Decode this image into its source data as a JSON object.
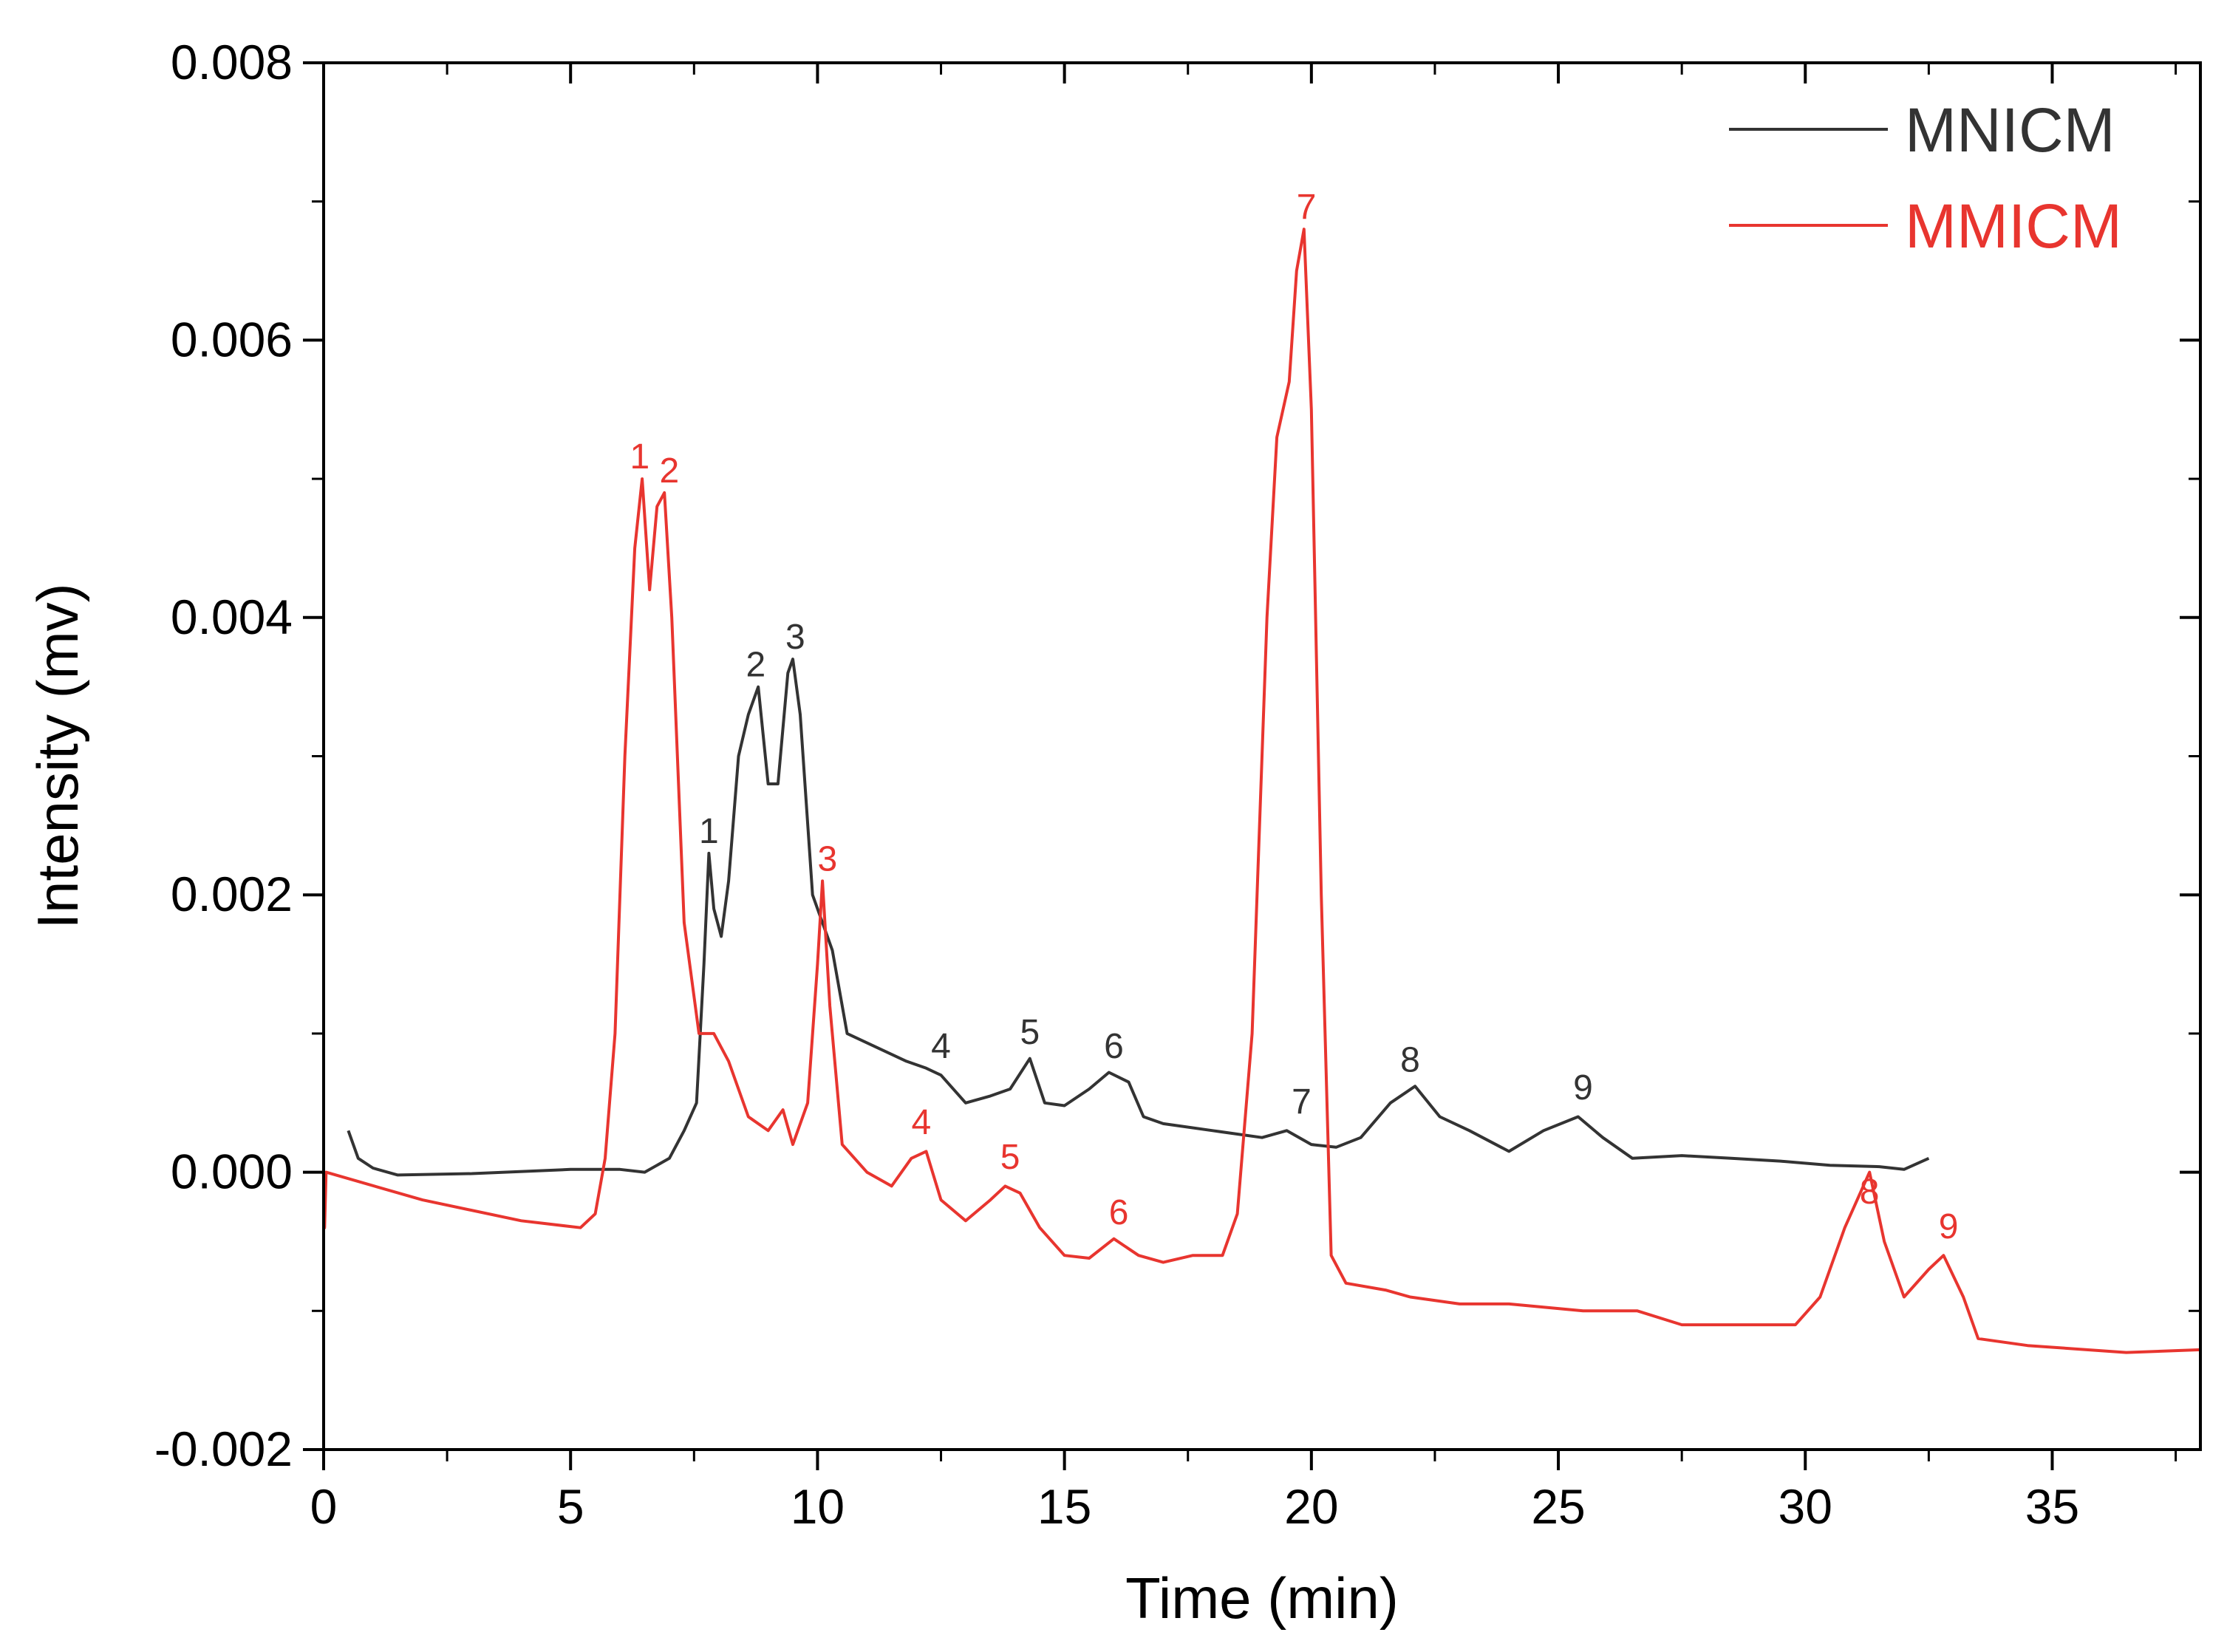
{
  "chart_data": {
    "type": "line",
    "xlabel": "Time (min)",
    "ylabel": "Intensity (mv)",
    "xlim": [
      0,
      38
    ],
    "ylim": [
      -0.002,
      0.008
    ],
    "x_ticks": [
      0,
      5,
      10,
      15,
      20,
      25,
      30,
      35
    ],
    "x_tick_labels": [
      "0",
      "5",
      "10",
      "15",
      "20",
      "25",
      "30",
      "35"
    ],
    "y_ticks": [
      -0.002,
      0.0,
      0.002,
      0.004,
      0.006,
      0.008
    ],
    "y_tick_labels": [
      "-0.002",
      "0.000",
      "0.002",
      "0.004",
      "0.006",
      "0.008"
    ],
    "legend_position": "top-right",
    "colors": {
      "MNICM": "#333333",
      "MMICM": "#e8352f",
      "axis": "#000000"
    },
    "series": [
      {
        "name": "MNICM",
        "points": [
          [
            0.5,
            0.0003
          ],
          [
            0.7,
            0.0001
          ],
          [
            1.0,
            3e-05
          ],
          [
            1.5,
            -2e-05
          ],
          [
            3.0,
            -1e-05
          ],
          [
            5.0,
            2e-05
          ],
          [
            6.0,
            2e-05
          ],
          [
            6.5,
            0.0
          ],
          [
            7.0,
            0.0001
          ],
          [
            7.3,
            0.0003
          ],
          [
            7.55,
            0.0005
          ],
          [
            7.7,
            0.0015
          ],
          [
            7.8,
            0.0023
          ],
          [
            7.9,
            0.0019
          ],
          [
            8.05,
            0.0017
          ],
          [
            8.2,
            0.0021
          ],
          [
            8.4,
            0.003
          ],
          [
            8.6,
            0.0033
          ],
          [
            8.8,
            0.0035
          ],
          [
            9.0,
            0.0028
          ],
          [
            9.2,
            0.0028
          ],
          [
            9.4,
            0.0036
          ],
          [
            9.5,
            0.0037
          ],
          [
            9.65,
            0.0033
          ],
          [
            9.9,
            0.002
          ],
          [
            10.3,
            0.0016
          ],
          [
            10.6,
            0.001
          ],
          [
            11.2,
            0.0009
          ],
          [
            11.8,
            0.0008
          ],
          [
            12.2,
            0.00075
          ],
          [
            12.5,
            0.0007
          ],
          [
            13.0,
            0.0005
          ],
          [
            13.5,
            0.00055
          ],
          [
            13.9,
            0.0006
          ],
          [
            14.3,
            0.00082
          ],
          [
            14.6,
            0.0005
          ],
          [
            15.0,
            0.00048
          ],
          [
            15.5,
            0.0006
          ],
          [
            15.9,
            0.00072
          ],
          [
            16.3,
            0.00065
          ],
          [
            16.6,
            0.0004
          ],
          [
            17.0,
            0.00035
          ],
          [
            18.0,
            0.0003
          ],
          [
            19.0,
            0.00025
          ],
          [
            19.5,
            0.0003
          ],
          [
            20.0,
            0.0002
          ],
          [
            20.5,
            0.00018
          ],
          [
            21.0,
            0.00025
          ],
          [
            21.6,
            0.0005
          ],
          [
            22.1,
            0.00062
          ],
          [
            22.6,
            0.0004
          ],
          [
            23.2,
            0.0003
          ],
          [
            24.0,
            0.00015
          ],
          [
            24.7,
            0.0003
          ],
          [
            25.4,
            0.0004
          ],
          [
            25.9,
            0.00025
          ],
          [
            26.5,
            0.0001
          ],
          [
            27.5,
            0.00012
          ],
          [
            28.5,
            0.0001
          ],
          [
            29.5,
            8e-05
          ],
          [
            30.5,
            5e-05
          ],
          [
            31.5,
            4e-05
          ],
          [
            32.0,
            2e-05
          ],
          [
            32.5,
            0.0001
          ]
        ]
      },
      {
        "name": "MMICM",
        "points": [
          [
            0.0,
            0.0
          ],
          [
            0.02,
            -0.0004
          ],
          [
            0.05,
            0.0
          ],
          [
            2.0,
            -0.0002
          ],
          [
            4.0,
            -0.00035
          ],
          [
            5.2,
            -0.0004
          ],
          [
            5.5,
            -0.0003
          ],
          [
            5.7,
            0.0001
          ],
          [
            5.9,
            0.001
          ],
          [
            6.1,
            0.003
          ],
          [
            6.3,
            0.0045
          ],
          [
            6.45,
            0.005
          ],
          [
            6.6,
            0.0042
          ],
          [
            6.75,
            0.0048
          ],
          [
            6.9,
            0.0049
          ],
          [
            7.05,
            0.004
          ],
          [
            7.3,
            0.0018
          ],
          [
            7.6,
            0.001
          ],
          [
            7.9,
            0.001
          ],
          [
            8.2,
            0.0008
          ],
          [
            8.6,
            0.0004
          ],
          [
            9.0,
            0.0003
          ],
          [
            9.3,
            0.00045
          ],
          [
            9.5,
            0.0002
          ],
          [
            9.8,
            0.0005
          ],
          [
            10.0,
            0.0015
          ],
          [
            10.1,
            0.0021
          ],
          [
            10.25,
            0.0012
          ],
          [
            10.5,
            0.0002
          ],
          [
            11.0,
            0.0
          ],
          [
            11.5,
            -0.0001
          ],
          [
            11.9,
            0.0001
          ],
          [
            12.2,
            0.00015
          ],
          [
            12.5,
            -0.0002
          ],
          [
            13.0,
            -0.00035
          ],
          [
            13.5,
            -0.0002
          ],
          [
            13.8,
            -0.0001
          ],
          [
            14.1,
            -0.00015
          ],
          [
            14.5,
            -0.0004
          ],
          [
            15.0,
            -0.0006
          ],
          [
            15.5,
            -0.00062
          ],
          [
            16.0,
            -0.00048
          ],
          [
            16.5,
            -0.0006
          ],
          [
            17.0,
            -0.00065
          ],
          [
            17.6,
            -0.0006
          ],
          [
            18.2,
            -0.0006
          ],
          [
            18.5,
            -0.0003
          ],
          [
            18.8,
            0.001
          ],
          [
            19.1,
            0.004
          ],
          [
            19.3,
            0.0053
          ],
          [
            19.55,
            0.0057
          ],
          [
            19.7,
            0.0065
          ],
          [
            19.85,
            0.0068
          ],
          [
            20.0,
            0.0055
          ],
          [
            20.2,
            0.002
          ],
          [
            20.4,
            -0.0006
          ],
          [
            20.7,
            -0.0008
          ],
          [
            21.5,
            -0.00085
          ],
          [
            22.0,
            -0.0009
          ],
          [
            23.0,
            -0.00095
          ],
          [
            24.0,
            -0.00095
          ],
          [
            25.5,
            -0.001
          ],
          [
            26.6,
            -0.001
          ],
          [
            27.5,
            -0.0011
          ],
          [
            29.0,
            -0.0011
          ],
          [
            29.8,
            -0.0011
          ],
          [
            30.3,
            -0.0009
          ],
          [
            30.8,
            -0.0004
          ],
          [
            31.3,
            0.0
          ],
          [
            31.6,
            -0.0005
          ],
          [
            32.0,
            -0.0009
          ],
          [
            32.5,
            -0.0007
          ],
          [
            32.8,
            -0.0006
          ],
          [
            33.2,
            -0.0009
          ],
          [
            33.5,
            -0.0012
          ],
          [
            34.5,
            -0.00125
          ],
          [
            36.5,
            -0.0013
          ],
          [
            38.0,
            -0.00128
          ]
        ]
      }
    ],
    "peak_labels": [
      {
        "series": "MNICM",
        "label": "1",
        "x": 7.8,
        "y": 0.0023
      },
      {
        "series": "MNICM",
        "label": "2",
        "x": 8.75,
        "y": 0.0035
      },
      {
        "series": "MNICM",
        "label": "3",
        "x": 9.55,
        "y": 0.0037
      },
      {
        "series": "MNICM",
        "label": "4",
        "x": 12.5,
        "y": 0.00075
      },
      {
        "series": "MNICM",
        "label": "5",
        "x": 14.3,
        "y": 0.00085
      },
      {
        "series": "MNICM",
        "label": "6",
        "x": 16.0,
        "y": 0.00075
      },
      {
        "series": "MNICM",
        "label": "7",
        "x": 19.8,
        "y": 0.00035
      },
      {
        "series": "MNICM",
        "label": "8",
        "x": 22.0,
        "y": 0.00065
      },
      {
        "series": "MNICM",
        "label": "9",
        "x": 25.5,
        "y": 0.00045
      },
      {
        "series": "MMICM",
        "label": "1",
        "x": 6.4,
        "y": 0.005
      },
      {
        "series": "MMICM",
        "label": "2",
        "x": 7.0,
        "y": 0.0049
      },
      {
        "series": "MMICM",
        "label": "3",
        "x": 10.2,
        "y": 0.0021
      },
      {
        "series": "MMICM",
        "label": "4",
        "x": 12.1,
        "y": 0.0002
      },
      {
        "series": "MMICM",
        "label": "5",
        "x": 13.9,
        "y": -5e-05
      },
      {
        "series": "MMICM",
        "label": "6",
        "x": 16.1,
        "y": -0.00045
      },
      {
        "series": "MMICM",
        "label": "7",
        "x": 19.9,
        "y": 0.0068
      },
      {
        "series": "MMICM",
        "label": "8",
        "x": 31.3,
        "y": -0.0003
      },
      {
        "series": "MMICM",
        "label": "9",
        "x": 32.9,
        "y": -0.00055
      }
    ]
  }
}
